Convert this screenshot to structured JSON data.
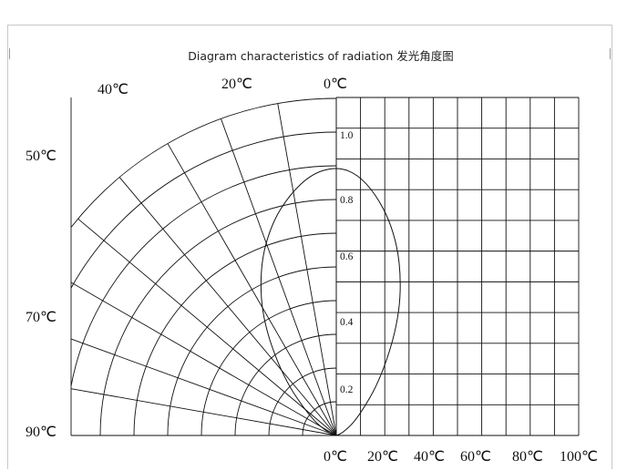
{
  "chart_data": {
    "type": "polar-radiation",
    "title": "Diagram characteristics of radiation 发光角度图",
    "angle_labels_top": [
      "40℃",
      "20℃",
      "0℃"
    ],
    "angle_labels_left": [
      "50℃",
      "70℃",
      "90℃"
    ],
    "x_tick_labels": [
      "0℃",
      "20℃",
      "40℃",
      "60℃",
      "80℃",
      "100℃"
    ],
    "radial_tick_labels": [
      "1.0",
      "0.8",
      "0.6",
      "0.4",
      "0.2"
    ],
    "radial_grid": [
      0.1,
      0.2,
      0.3,
      0.4,
      0.5,
      0.6,
      0.7,
      0.8,
      0.9,
      1.0
    ],
    "angle_grid_deg": [
      0,
      10,
      20,
      30,
      40,
      50,
      60,
      70,
      80,
      90
    ],
    "rlim": [
      0,
      1.0
    ],
    "series": [
      {
        "angle_deg": [
          -90,
          -80,
          -70,
          -60,
          -50,
          -40,
          -30,
          -20,
          -10,
          0,
          10,
          20,
          30,
          40,
          50,
          60,
          70,
          80,
          90
        ],
        "values": [
          0.0,
          0.05,
          0.17,
          0.38,
          0.6,
          0.73,
          0.8,
          0.84,
          0.87,
          0.88,
          0.87,
          0.84,
          0.8,
          0.73,
          0.6,
          0.38,
          0.17,
          0.05,
          0.0
        ]
      }
    ]
  }
}
